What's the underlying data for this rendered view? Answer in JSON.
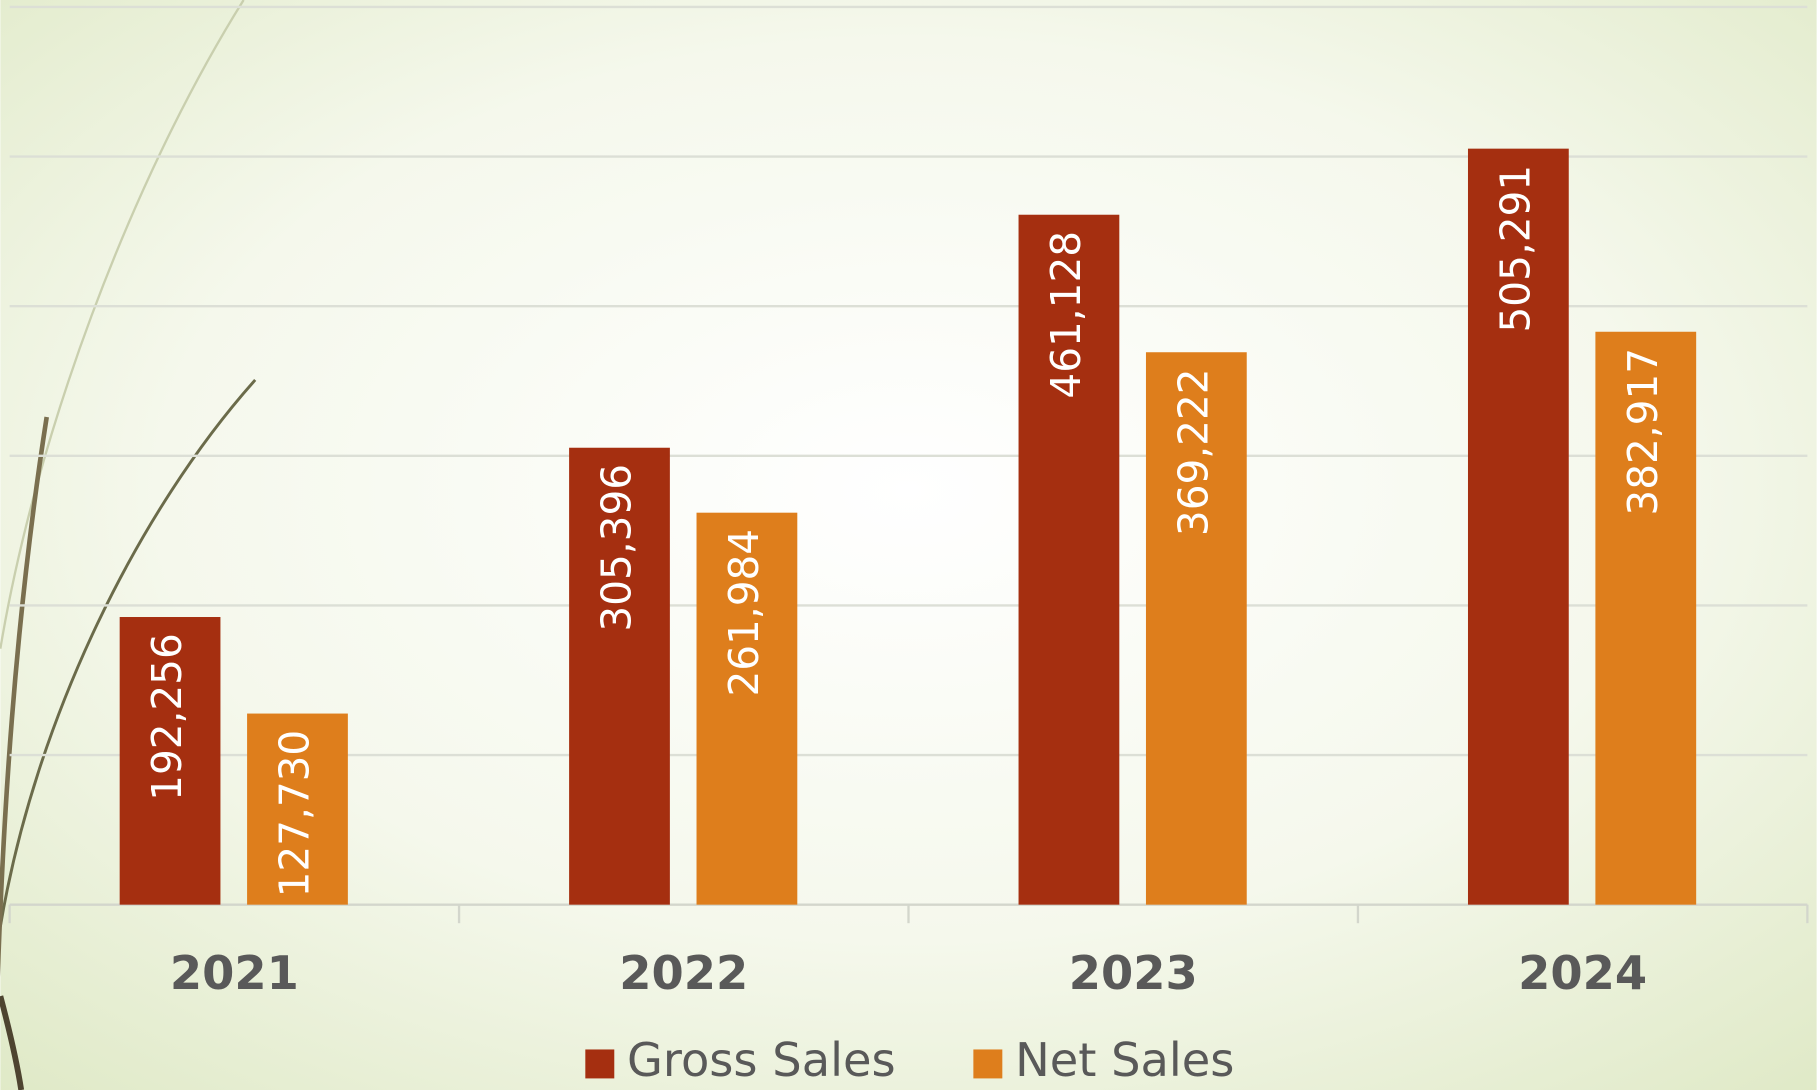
{
  "chart_data": {
    "type": "bar",
    "categories": [
      "2021",
      "2022",
      "2023",
      "2024"
    ],
    "series": [
      {
        "name": "Gross Sales",
        "color": "#a52f10",
        "values": [
          192256,
          305396,
          461128,
          505291
        ],
        "value_labels": [
          "192,256",
          "305,396",
          "461,128",
          "505,291"
        ]
      },
      {
        "name": "Net Sales",
        "color": "#de7e1c",
        "values": [
          127730,
          261984,
          369222,
          382917
        ],
        "value_labels": [
          "127,730",
          "261,984",
          "369,222",
          "382,917"
        ]
      }
    ],
    "ylim": [
      0,
      600000
    ],
    "yticks": [
      0,
      100000,
      200000,
      300000,
      400000,
      500000,
      600000
    ],
    "grid": true,
    "legend": "bottom"
  }
}
